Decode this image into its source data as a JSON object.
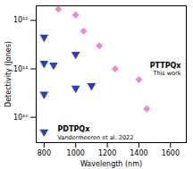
{
  "chart_data": {
    "type": "scatter",
    "x_label": "Wavelength (nm)",
    "y_label": "Detectivity (Jones)",
    "log": "y",
    "xlim": [
      750,
      1700
    ],
    "xticks": [
      800,
      1000,
      1200,
      1400,
      1600
    ],
    "ylim": [
      3000000000,
      2000000000000
    ],
    "yticks": [
      {
        "value": 10000000000,
        "label": "10¹⁰"
      },
      {
        "value": 100000000000,
        "label": "10¹¹"
      },
      {
        "value": 1000000000000,
        "label": "10¹²"
      }
    ],
    "series": [
      {
        "name": "PDTPQx",
        "color": "#2b3fbf",
        "marker": "triangle-down",
        "x": [
          800,
          800,
          800,
          800,
          860,
          1000,
          1000,
          1100
        ],
        "values": [
          450000000000,
          130000000000,
          30000000000,
          5000000000,
          120000000000,
          200000000000,
          40000000000,
          45000000000
        ]
      },
      {
        "name": "PTTPQx",
        "color": "#ef8ac9",
        "marker": "diamond",
        "x": [
          890,
          1000,
          1050,
          1150,
          1250,
          1400,
          1450
        ],
        "values": [
          1700000000000,
          1300000000000,
          600000000000,
          300000000000,
          100000000000,
          60000000000,
          15000000000
        ]
      }
    ],
    "annotations": [
      {
        "series": "PDTPQx",
        "text": "PDTPQx"
      },
      {
        "series": "PDTPQx",
        "text": "Vandermeeren et al. 2022"
      },
      {
        "series": "PTTPQx",
        "text": "PTTPQx"
      },
      {
        "series": "PTTPQx",
        "text": "This work"
      }
    ]
  }
}
